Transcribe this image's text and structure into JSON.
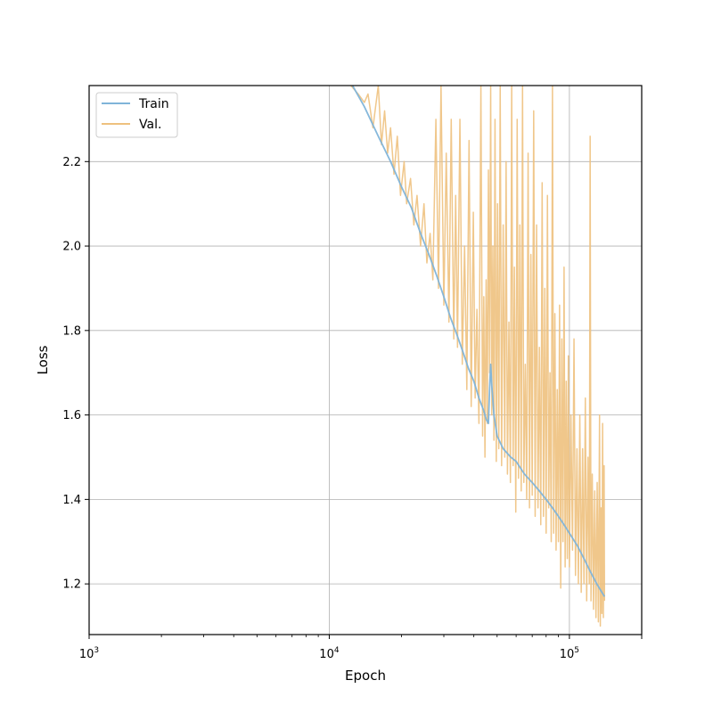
{
  "chart_data": {
    "type": "line",
    "title": "",
    "xlabel": "Epoch",
    "ylabel": "Loss",
    "xscale": "log",
    "xlim": [
      1000,
      200000
    ],
    "ylim": [
      1.08,
      2.38
    ],
    "grid": true,
    "legend_position": "top-left",
    "x_ticks": [
      {
        "value": 1000,
        "base": "10",
        "exp": "3"
      },
      {
        "value": 10000,
        "base": "10",
        "exp": "4"
      },
      {
        "value": 100000,
        "base": "10",
        "exp": "5"
      }
    ],
    "y_ticks": [
      {
        "value": 1.2,
        "label": "1.2"
      },
      {
        "value": 1.4,
        "label": "1.4"
      },
      {
        "value": 1.6,
        "label": "1.6"
      },
      {
        "value": 1.8,
        "label": "1.8"
      },
      {
        "value": 2.0,
        "label": "2.0"
      },
      {
        "value": 2.2,
        "label": "2.2"
      }
    ],
    "series": [
      {
        "name": "Train",
        "color": "#7fb4d9",
        "points": [
          [
            12500,
            2.38
          ],
          [
            14000,
            2.33
          ],
          [
            16000,
            2.26
          ],
          [
            18000,
            2.2
          ],
          [
            20000,
            2.14
          ],
          [
            22000,
            2.09
          ],
          [
            24000,
            2.03
          ],
          [
            26000,
            1.98
          ],
          [
            28000,
            1.93
          ],
          [
            30000,
            1.88
          ],
          [
            32000,
            1.83
          ],
          [
            34000,
            1.79
          ],
          [
            36000,
            1.75
          ],
          [
            38000,
            1.71
          ],
          [
            40000,
            1.68
          ],
          [
            42000,
            1.64
          ],
          [
            44000,
            1.61
          ],
          [
            45000,
            1.59
          ],
          [
            46000,
            1.58
          ],
          [
            46500,
            1.66
          ],
          [
            47000,
            1.72
          ],
          [
            47500,
            1.67
          ],
          [
            48500,
            1.6
          ],
          [
            50000,
            1.55
          ],
          [
            53000,
            1.52
          ],
          [
            57000,
            1.5
          ],
          [
            60000,
            1.49
          ],
          [
            65000,
            1.46
          ],
          [
            70000,
            1.44
          ],
          [
            75000,
            1.42
          ],
          [
            80000,
            1.4
          ],
          [
            85000,
            1.38
          ],
          [
            90000,
            1.36
          ],
          [
            95000,
            1.34
          ],
          [
            100000,
            1.32
          ],
          [
            108000,
            1.29
          ],
          [
            115000,
            1.26
          ],
          [
            122000,
            1.23
          ],
          [
            130000,
            1.2
          ],
          [
            140000,
            1.17
          ]
        ]
      },
      {
        "name": "Val.",
        "color": "#eec17e",
        "points": [
          [
            12300,
            2.38
          ],
          [
            13200,
            2.36
          ],
          [
            14000,
            2.34
          ],
          [
            14500,
            2.36
          ],
          [
            15200,
            2.28
          ],
          [
            16000,
            2.38
          ],
          [
            16500,
            2.24
          ],
          [
            17000,
            2.32
          ],
          [
            17500,
            2.22
          ],
          [
            18000,
            2.28
          ],
          [
            18600,
            2.17
          ],
          [
            19200,
            2.26
          ],
          [
            19800,
            2.12
          ],
          [
            20500,
            2.2
          ],
          [
            21000,
            2.1
          ],
          [
            21800,
            2.16
          ],
          [
            22500,
            2.05
          ],
          [
            23200,
            2.12
          ],
          [
            24000,
            2.0
          ],
          [
            24800,
            2.1
          ],
          [
            25500,
            1.96
          ],
          [
            26300,
            2.03
          ],
          [
            27000,
            1.92
          ],
          [
            27800,
            2.3
          ],
          [
            28500,
            1.9
          ],
          [
            29200,
            2.38
          ],
          [
            30000,
            1.86
          ],
          [
            30700,
            2.22
          ],
          [
            31500,
            1.82
          ],
          [
            32200,
            2.3
          ],
          [
            33000,
            1.78
          ],
          [
            33600,
            2.12
          ],
          [
            34200,
            1.76
          ],
          [
            35000,
            2.3
          ],
          [
            35800,
            1.72
          ],
          [
            36600,
            2.0
          ],
          [
            37400,
            1.66
          ],
          [
            38200,
            2.25
          ],
          [
            39000,
            1.62
          ],
          [
            39800,
            2.08
          ],
          [
            40500,
            1.64
          ],
          [
            41200,
            1.85
          ],
          [
            42000,
            1.58
          ],
          [
            42800,
            2.38
          ],
          [
            43500,
            1.55
          ],
          [
            44000,
            1.88
          ],
          [
            44500,
            1.5
          ],
          [
            45000,
            1.92
          ],
          [
            45500,
            1.58
          ],
          [
            46000,
            2.18
          ],
          [
            46500,
            1.7
          ],
          [
            47000,
            2.38
          ],
          [
            47500,
            1.6
          ],
          [
            48000,
            2.0
          ],
          [
            48500,
            1.54
          ],
          [
            49000,
            2.3
          ],
          [
            49600,
            1.49
          ],
          [
            50200,
            2.1
          ],
          [
            50800,
            1.52
          ],
          [
            51500,
            2.38
          ],
          [
            52200,
            1.48
          ],
          [
            53000,
            2.05
          ],
          [
            53800,
            1.5
          ],
          [
            54500,
            2.2
          ],
          [
            55200,
            1.46
          ],
          [
            56000,
            1.82
          ],
          [
            56800,
            1.44
          ],
          [
            57500,
            2.38
          ],
          [
            58300,
            1.48
          ],
          [
            59000,
            1.95
          ],
          [
            59800,
            1.37
          ],
          [
            60600,
            2.3
          ],
          [
            61400,
            1.45
          ],
          [
            62200,
            2.05
          ],
          [
            63000,
            1.42
          ],
          [
            63800,
            2.38
          ],
          [
            64600,
            1.44
          ],
          [
            65500,
            1.72
          ],
          [
            66400,
            1.4
          ],
          [
            67300,
            2.22
          ],
          [
            68200,
            1.38
          ],
          [
            69100,
            1.98
          ],
          [
            70000,
            1.41
          ],
          [
            71000,
            2.32
          ],
          [
            72000,
            1.36
          ],
          [
            73000,
            2.05
          ],
          [
            74000,
            1.38
          ],
          [
            75000,
            1.76
          ],
          [
            76000,
            1.34
          ],
          [
            77000,
            2.15
          ],
          [
            78000,
            1.36
          ],
          [
            79000,
            1.9
          ],
          [
            80000,
            1.32
          ],
          [
            81000,
            2.12
          ],
          [
            82000,
            1.38
          ],
          [
            83000,
            1.7
          ],
          [
            84000,
            1.3
          ],
          [
            85000,
            2.38
          ],
          [
            86000,
            1.32
          ],
          [
            87000,
            1.84
          ],
          [
            88000,
            1.28
          ],
          [
            89000,
            1.66
          ],
          [
            90000,
            1.3
          ],
          [
            91000,
            1.86
          ],
          [
            92000,
            1.19
          ],
          [
            93000,
            1.78
          ],
          [
            94000,
            1.3
          ],
          [
            95000,
            1.95
          ],
          [
            96000,
            1.24
          ],
          [
            97000,
            1.68
          ],
          [
            98000,
            1.26
          ],
          [
            99000,
            1.74
          ],
          [
            100000,
            1.24
          ],
          [
            101500,
            1.6
          ],
          [
            103000,
            1.28
          ],
          [
            104500,
            1.78
          ],
          [
            106000,
            1.22
          ],
          [
            107500,
            1.52
          ],
          [
            109000,
            1.2
          ],
          [
            110500,
            1.6
          ],
          [
            112000,
            1.18
          ],
          [
            113500,
            1.52
          ],
          [
            115000,
            1.2
          ],
          [
            116500,
            1.64
          ],
          [
            118000,
            1.16
          ],
          [
            119500,
            1.5
          ],
          [
            121000,
            1.2
          ],
          [
            122000,
            2.26
          ],
          [
            123000,
            1.16
          ],
          [
            124500,
            1.46
          ],
          [
            126000,
            1.14
          ],
          [
            127500,
            1.42
          ],
          [
            129000,
            1.12
          ],
          [
            130500,
            1.44
          ],
          [
            132000,
            1.11
          ],
          [
            133500,
            1.6
          ],
          [
            134500,
            1.1
          ],
          [
            135500,
            1.38
          ],
          [
            136500,
            1.13
          ],
          [
            137500,
            1.58
          ],
          [
            138500,
            1.12
          ],
          [
            139500,
            1.48
          ],
          [
            140000,
            1.16
          ]
        ]
      }
    ]
  }
}
